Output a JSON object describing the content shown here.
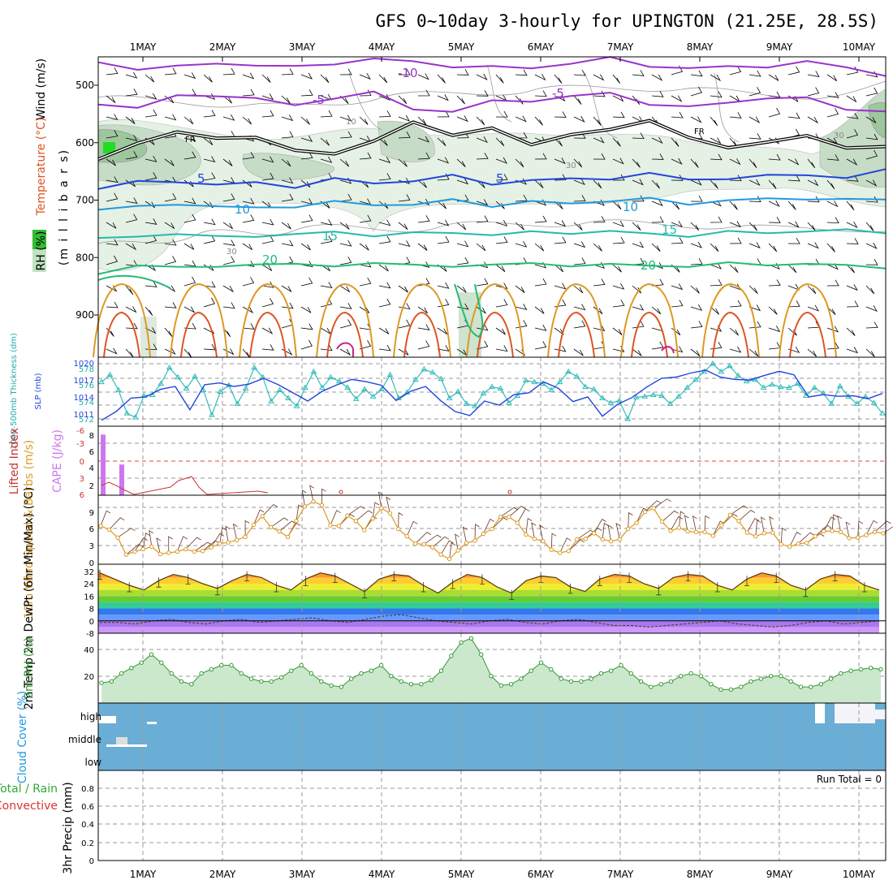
{
  "title": "GFS 0~10day 3-hourly for UPINGTON (21.25E, 28.5S)",
  "colors": {
    "purple": "#9933cc",
    "blue": "#2244dd",
    "lightblue": "#2299dd",
    "teal": "#22bbaa",
    "green": "#22bb77",
    "orange": "#dd9922",
    "darkorange": "#dd5522",
    "magenta": "#cc2288",
    "cyan": "#33bbbb",
    "cloud": "#6aaed6",
    "rhfill": "#cce8cc",
    "rhline": "#339933",
    "lifted": "#cc3333",
    "cape": "#cc77ee"
  },
  "chart_data": [
    {
      "name": "upper-air",
      "type": "contour",
      "x_ticks": [
        "1MAY",
        "2MAY",
        "3MAY",
        "4MAY",
        "5MAY",
        "6MAY",
        "7MAY",
        "8MAY",
        "9MAY",
        "10MAY"
      ],
      "ylabel": "(m i l l i b a r s)",
      "y_ticks": [
        "500",
        "600",
        "700",
        "800",
        "900"
      ],
      "side_label_wind": "Wind (m/s)",
      "side_label_temp": "Temperature (°C)",
      "side_label_rh": "RH (%)",
      "contour_labels": {
        "m10": "-10",
        "m5a": "-5",
        "m5b": "-5",
        "fr1": "FR",
        "fr2": "FR",
        "p5a": "5",
        "p5b": "5",
        "p10a": "10",
        "p10b": "10",
        "p15a": "15",
        "p15b": "15",
        "p20a": "20",
        "p20b": "20",
        "rh10": "10",
        "rh30a": "30",
        "rh30b": "30",
        "rh30c": "30"
      },
      "isotherms": [
        {
          "label": "-10",
          "color": "purple",
          "p": [
            460,
            470,
            470,
            460,
            465,
            470,
            460,
            455,
            460,
            465,
            470,
            470,
            460,
            455,
            465,
            470,
            470,
            465,
            460,
            470,
            480
          ]
        },
        {
          "label": "-5",
          "color": "purple",
          "p": [
            530,
            540,
            520,
            515,
            525,
            535,
            520,
            515,
            540,
            545,
            530,
            525,
            520,
            515,
            530,
            540,
            530,
            520,
            525,
            540,
            545
          ]
        },
        {
          "label": "FR",
          "color": "black",
          "p": [
            625,
            605,
            580,
            590,
            595,
            610,
            620,
            600,
            560,
            590,
            575,
            600,
            590,
            575,
            560,
            595,
            605,
            600,
            590,
            605,
            610
          ]
        },
        {
          "label": "5",
          "color": "blue",
          "p": [
            680,
            670,
            665,
            675,
            670,
            675,
            665,
            670,
            665,
            660,
            670,
            665,
            665,
            660,
            655,
            665,
            660,
            660,
            655,
            660,
            650
          ]
        },
        {
          "label": "10",
          "color": "lightblue",
          "p": [
            720,
            710,
            705,
            715,
            710,
            712,
            705,
            705,
            710,
            700,
            708,
            705,
            705,
            700,
            700,
            705,
            700,
            700,
            695,
            700,
            700
          ]
        },
        {
          "label": "15",
          "color": "teal",
          "p": [
            770,
            760,
            760,
            765,
            760,
            762,
            755,
            760,
            760,
            755,
            760,
            758,
            755,
            755,
            760,
            760,
            757,
            757,
            752,
            755,
            755
          ]
        },
        {
          "label": "20",
          "color": "green",
          "p": [
            830,
            810,
            820,
            815,
            810,
            815,
            812,
            810,
            815,
            812,
            815,
            810,
            812,
            815,
            812,
            815,
            812,
            810,
            812,
            815,
            815
          ]
        }
      ]
    },
    {
      "name": "thickness-slp",
      "type": "line",
      "ylabel_left": "1000-500mb Thickness (dm)",
      "ylabel_right": "SLP (mb)",
      "y_ticks_left": [
        "578",
        "576",
        "574",
        "572"
      ],
      "y_ticks_right": [
        "1020",
        "1017",
        "1014",
        "1011"
      ],
      "series": [
        {
          "name": "Thickness",
          "color": "cyan",
          "values": [
            576.2,
            577.1,
            575.2,
            572.3,
            571.8,
            574.5,
            574.6,
            576.0,
            578.0,
            576.8,
            575.4,
            576.9,
            575.2,
            572.1,
            575.0,
            575.8,
            573.5,
            575.4,
            578.0,
            576.8,
            573.8,
            575.2,
            574.2,
            573.2,
            575.5,
            577.5,
            575.5,
            576.8,
            576.3,
            575.5,
            574.1,
            575.3,
            574.4,
            575.3,
            577.1,
            574.2,
            574.9,
            576.5,
            577.8,
            577.4,
            576.6,
            574.2,
            575.0,
            573.5,
            573.2,
            574.8,
            575.6,
            575.4,
            573.6,
            574.5,
            576.4,
            576.2,
            576.0,
            575.2,
            576.2,
            577.5,
            576.9,
            575.6,
            575.3,
            574.2,
            573.6,
            573.9,
            571.6,
            574.3,
            574.4,
            574.6,
            574.5,
            573.5,
            574.4,
            575.5,
            576.5,
            577.5,
            578.5,
            577.5,
            578.2,
            577.0,
            576.3,
            576.5,
            575.5,
            575.9,
            575.6,
            575.5,
            576.0,
            574.5,
            575.5,
            574.8,
            573.5,
            575.7,
            574.4,
            573.5,
            574.4,
            573.6,
            572.3
          ]
        },
        {
          "name": "SLP",
          "color": "blue",
          "values": [
            1010.6,
            1012.1,
            1014.4,
            1014.6,
            1015.9,
            1016.4,
            1012.4,
            1016.7,
            1017.0,
            1016.4,
            1016.8,
            1017.8,
            1016.7,
            1015.3,
            1013.9,
            1015.6,
            1016.7,
            1017.6,
            1017.2,
            1016.6,
            1014.0,
            1015.6,
            1016.4,
            1014.0,
            1012.1,
            1011.4,
            1013.9,
            1013.2,
            1015.0,
            1015.3,
            1017.2,
            1016.1,
            1013.8,
            1014.6,
            1011.3,
            1013.3,
            1014.5,
            1016.3,
            1017.8,
            1018.0,
            1018.7,
            1019.2,
            1018.0,
            1017.6,
            1017.5,
            1018.3,
            1019.0,
            1018.4,
            1014.6,
            1015.0,
            1014.7,
            1014.8,
            1014.3,
            1015.2
          ]
        }
      ]
    },
    {
      "name": "cape-li",
      "type": "bar",
      "ylabel_left": "Lifted Index",
      "ylabel_right": "CAPE (J/kg)",
      "y_ticks_left": [
        "-6",
        "-3",
        "0",
        "3",
        "6"
      ],
      "y_ticks_right": [
        "8",
        "6",
        "4",
        "2"
      ],
      "cape_values": [
        8.1,
        0,
        4.1,
        0
      ],
      "li_values": [
        1.8,
        2.3,
        1.7,
        3.8,
        5.4,
        6.0,
        5.2,
        4.9,
        4.2,
        3.5,
        4.0,
        6.0
      ]
    },
    {
      "name": "10m-wind",
      "type": "line",
      "ylabel": "10m Wind Speed & Barbs (m/s)",
      "y_ticks": [
        "9",
        "6",
        "3",
        "0"
      ],
      "values": [
        6.0,
        5.4,
        4.1,
        1.3,
        1.8,
        2.2,
        2.6,
        1.4,
        1.6,
        1.8,
        2.2,
        1.8,
        1.9,
        2.5,
        3.1,
        3.3,
        3.7,
        4.2,
        6.2,
        7.6,
        5.8,
        5.1,
        4.2,
        6.8,
        9.2,
        10.0,
        9.4,
        6.1,
        6.0,
        7.7,
        6.8,
        5.3,
        7.2,
        8.9,
        8.1,
        5.5,
        4.3,
        3.1,
        3.0,
        2.5,
        1.3,
        0.6,
        2.0,
        3.2,
        3.6,
        4.7,
        5.5,
        7.5,
        7.5,
        6.5,
        4.6,
        3.9,
        3.5,
        2.1,
        1.6,
        1.9,
        3.8,
        3.9,
        4.8,
        3.8,
        3.5,
        3.8,
        5.5,
        6.5,
        8.3,
        8.9,
        6.7,
        5.2,
        5.7,
        5.1,
        5.0,
        5.0,
        4.4,
        6.1,
        7.8,
        6.8,
        4.9,
        4.3,
        4.8,
        4.9,
        3.0,
        2.6,
        3.1,
        3.2,
        4.3,
        5.1,
        5.2,
        5.0,
        4.0,
        4.1,
        4.5,
        5.0,
        4.8
      ]
    },
    {
      "name": "2m-temp",
      "type": "area",
      "ylabel": "2m Temp 2m DewPt (6hr Min/Max) (°C)",
      "y_ticks": [
        "32",
        "24",
        "16",
        "8",
        "0",
        "-8"
      ],
      "temp_values": [
        31,
        27,
        23,
        20,
        26,
        30,
        28,
        24,
        21,
        26,
        30,
        28,
        23,
        20,
        27,
        31,
        29,
        24,
        19,
        27,
        30,
        29,
        23,
        18,
        25,
        30,
        28,
        22,
        18,
        26,
        29,
        28,
        22,
        19,
        27,
        30,
        29,
        24,
        21,
        28,
        30,
        29,
        23,
        20,
        27,
        31,
        29,
        23,
        20,
        27,
        30,
        29,
        23,
        20
      ],
      "dew_values": [
        -1,
        -1,
        -2,
        0,
        1,
        -1,
        -2,
        0,
        1,
        -1,
        0,
        1,
        2,
        0,
        -1,
        1,
        3,
        4,
        2,
        0,
        -1,
        -2,
        0,
        1,
        -1,
        -2,
        0,
        1,
        -1,
        -3,
        -3,
        -4,
        -3,
        -2,
        -1,
        0,
        -2,
        -3,
        -4,
        -3,
        -1,
        0,
        -2,
        -1,
        0
      ]
    },
    {
      "name": "2m-rh",
      "type": "area",
      "ylabel": "2m RH (%)",
      "y_ticks": [
        "40",
        "20"
      ],
      "values": [
        15,
        16,
        22,
        26,
        30,
        36,
        30,
        22,
        16,
        14,
        22,
        25,
        28,
        28,
        22,
        18,
        16,
        16,
        19,
        24,
        28,
        22,
        16,
        13,
        12,
        18,
        22,
        24,
        28,
        20,
        16,
        14,
        14,
        17,
        24,
        35,
        45,
        48,
        36,
        20,
        13,
        14,
        18,
        24,
        30,
        25,
        18,
        16,
        16,
        18,
        22,
        24,
        28,
        22,
        16,
        12,
        14,
        16,
        20,
        22,
        20,
        14,
        10,
        10,
        12,
        16,
        18,
        20,
        20,
        16,
        12,
        12,
        14,
        18,
        22,
        24,
        25,
        26,
        25
      ]
    },
    {
      "name": "cloud-cover",
      "type": "heatmap",
      "ylabel": "Cloud Cover (%)",
      "y_ticks": [
        "high",
        "middle",
        "low"
      ]
    },
    {
      "name": "precip",
      "type": "bar",
      "ylabel_a": "Total / Rain",
      "ylabel_b": "Convective",
      "ylabel_c": "3hr Precip (mm)",
      "y_ticks": [
        "0.8",
        "0.6",
        "0.4",
        "0.2",
        "0"
      ],
      "run_total": "Run Total = 0",
      "x_ticks": [
        "1MAY",
        "2MAY",
        "3MAY",
        "4MAY",
        "5MAY",
        "6MAY",
        "7MAY",
        "8MAY",
        "9MAY",
        "10MAY"
      ]
    }
  ]
}
